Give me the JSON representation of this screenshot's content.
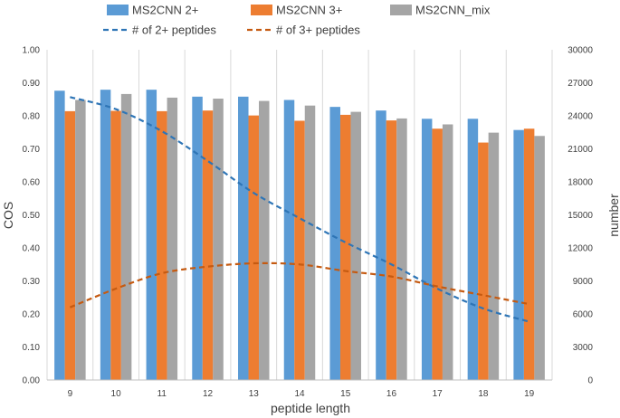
{
  "chart_data": {
    "type": "bar",
    "categories": [
      "9",
      "10",
      "11",
      "12",
      "13",
      "14",
      "15",
      "16",
      "17",
      "18",
      "19"
    ],
    "series": [
      {
        "name": "MS2CNN 2+",
        "kind": "bar",
        "axis": "left",
        "color": "#5B9BD5",
        "values": [
          0.876,
          0.879,
          0.879,
          0.858,
          0.858,
          0.848,
          0.827,
          0.816,
          0.791,
          0.791,
          0.757
        ]
      },
      {
        "name": "MS2CNN 3+",
        "kind": "bar",
        "axis": "left",
        "color": "#ED7D31",
        "values": [
          0.814,
          0.815,
          0.814,
          0.816,
          0.801,
          0.785,
          0.803,
          0.786,
          0.761,
          0.719,
          0.761
        ]
      },
      {
        "name": "MS2CNN_mix",
        "kind": "bar",
        "axis": "left",
        "color": "#A5A5A5",
        "values": [
          0.848,
          0.866,
          0.855,
          0.852,
          0.845,
          0.831,
          0.812,
          0.792,
          0.774,
          0.749,
          0.739
        ]
      },
      {
        "name": "# of 2+ peptides",
        "kind": "line",
        "axis": "right",
        "color": "#2E75B6",
        "values": [
          25700,
          24600,
          22600,
          19900,
          17000,
          14700,
          12500,
          10500,
          8300,
          6500,
          5300
        ]
      },
      {
        "name": "# of 3+ peptides",
        "kind": "line",
        "axis": "right",
        "color": "#C55A11",
        "values": [
          6600,
          8300,
          9700,
          10300,
          10600,
          10500,
          9900,
          9400,
          8500,
          7700,
          6900
        ]
      }
    ],
    "xlabel": "peptide length",
    "ylabel": "COS",
    "y2label": "number",
    "ylim": [
      0,
      1.0
    ],
    "yticks": [
      "0.00",
      "0.10",
      "0.20",
      "0.30",
      "0.40",
      "0.50",
      "0.60",
      "0.70",
      "0.80",
      "0.90",
      "1.00"
    ],
    "y2lim": [
      0,
      30000
    ],
    "y2ticks": [
      "0",
      "3000",
      "6000",
      "9000",
      "12000",
      "15000",
      "18000",
      "21000",
      "24000",
      "27000",
      "30000"
    ],
    "grid": "vertical",
    "legend_position": "top"
  }
}
